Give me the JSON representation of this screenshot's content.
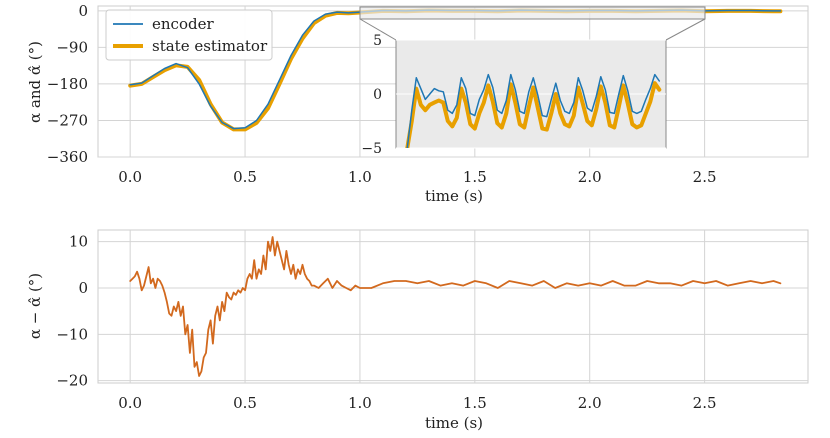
{
  "chart_data": [
    {
      "type": "line",
      "xlabel": "time (s)",
      "ylabel": "α and α̂ (°)",
      "xlim": [
        -0.14,
        2.95
      ],
      "ylim": [
        -360,
        12
      ],
      "xticks": [
        "0.0",
        "0.5",
        "1.0",
        "1.5",
        "2.0",
        "2.5"
      ],
      "xtick_values": [
        0,
        0.5,
        1.0,
        1.5,
        2.0,
        2.5
      ],
      "yticks": [
        "0",
        "−90",
        "−180",
        "−270",
        "−360"
      ],
      "ytick_values": [
        0,
        -90,
        -180,
        -270,
        -360
      ],
      "grid": true,
      "legend": {
        "location": "top-left",
        "entries": [
          "encoder",
          "state estimator"
        ]
      },
      "colors": {
        "encoder": "#1f77b4",
        "state_estimator": "#e8a000"
      },
      "series": [
        {
          "name": "encoder",
          "x": [
            0,
            0.05,
            0.1,
            0.15,
            0.2,
            0.25,
            0.3,
            0.35,
            0.4,
            0.45,
            0.5,
            0.55,
            0.6,
            0.65,
            0.7,
            0.75,
            0.8,
            0.85,
            0.9,
            0.95,
            1.0,
            1.1,
            1.2,
            1.3,
            1.4,
            1.5,
            1.6,
            1.7,
            1.8,
            1.9,
            2.0,
            2.1,
            2.2,
            2.3,
            2.4,
            2.5,
            2.6,
            2.7,
            2.8,
            2.83
          ],
          "y": [
            -182,
            -178,
            -160,
            -142,
            -130,
            -140,
            -180,
            -235,
            -275,
            -290,
            -288,
            -270,
            -230,
            -170,
            -110,
            -60,
            -25,
            -8,
            -3,
            -5,
            -3,
            1,
            0,
            2,
            1,
            1,
            0,
            2,
            1,
            0,
            1,
            1,
            0,
            1,
            2,
            0,
            1,
            1,
            0,
            0
          ]
        },
        {
          "name": "state estimator",
          "x": [
            0,
            0.05,
            0.1,
            0.15,
            0.2,
            0.25,
            0.3,
            0.35,
            0.4,
            0.45,
            0.5,
            0.55,
            0.6,
            0.65,
            0.7,
            0.75,
            0.8,
            0.85,
            0.9,
            0.95,
            1.0,
            1.1,
            1.2,
            1.3,
            1.4,
            1.5,
            1.6,
            1.7,
            1.8,
            1.9,
            2.0,
            2.1,
            2.2,
            2.3,
            2.4,
            2.5,
            2.6,
            2.7,
            2.8,
            2.83
          ],
          "y": [
            -184,
            -180,
            -163,
            -146,
            -134,
            -138,
            -170,
            -230,
            -275,
            -292,
            -292,
            -276,
            -240,
            -180,
            -118,
            -68,
            -30,
            -12,
            -5,
            -6,
            -4,
            0,
            -1,
            1,
            0,
            0,
            -1,
            1,
            0,
            -1,
            0,
            0,
            -1,
            0,
            1,
            -1,
            0,
            0,
            -1,
            -1
          ]
        }
      ],
      "inset": {
        "xlim": [
          1.15,
          2.35
        ],
        "ylim": [
          -5,
          5
        ],
        "yticks": [
          "5",
          "0",
          "−5"
        ],
        "ytick_values": [
          5,
          0,
          -5
        ],
        "series": [
          {
            "name": "encoder",
            "x": [
              1.2,
              1.22,
              1.24,
              1.26,
              1.28,
              1.3,
              1.32,
              1.34,
              1.36,
              1.38,
              1.4,
              1.42,
              1.44,
              1.46,
              1.48,
              1.5,
              1.52,
              1.54,
              1.56,
              1.58,
              1.6,
              1.62,
              1.64,
              1.66,
              1.68,
              1.7,
              1.72,
              1.74,
              1.76,
              1.78,
              1.8,
              1.82,
              1.84,
              1.86,
              1.88,
              1.9,
              1.92,
              1.94,
              1.96,
              1.98,
              2.0,
              2.02,
              2.04,
              2.06,
              2.08,
              2.1,
              2.12,
              2.14,
              2.16,
              2.18,
              2.2,
              2.22,
              2.24,
              2.26,
              2.28,
              2.3,
              2.32
            ],
            "y": [
              -5,
              -1.5,
              1.5,
              0.5,
              -0.5,
              0,
              0.5,
              0.3,
              0.2,
              -1.5,
              -1.8,
              -1,
              1.5,
              0.5,
              -1.8,
              -2,
              -0.5,
              0.4,
              1.8,
              0.6,
              -1.5,
              -1.8,
              -0.6,
              1.8,
              0.4,
              -1.6,
              -1.8,
              0.2,
              1.5,
              -0.1,
              -2,
              -2.1,
              -0.5,
              1,
              -0.6,
              -1.6,
              -1.8,
              -0.8,
              1.5,
              0.3,
              -1.3,
              -1.6,
              -0.2,
              1.6,
              0.4,
              -1.7,
              -1.8,
              0,
              1.7,
              0.3,
              -1.6,
              -1.8,
              -1.6,
              -0.5,
              0.5,
              1.8,
              1.2
            ]
          },
          {
            "name": "state estimator",
            "x": [
              1.2,
              1.22,
              1.24,
              1.26,
              1.28,
              1.3,
              1.32,
              1.34,
              1.36,
              1.38,
              1.4,
              1.42,
              1.44,
              1.46,
              1.48,
              1.5,
              1.52,
              1.54,
              1.56,
              1.58,
              1.6,
              1.62,
              1.64,
              1.66,
              1.68,
              1.7,
              1.72,
              1.74,
              1.76,
              1.78,
              1.8,
              1.82,
              1.84,
              1.86,
              1.88,
              1.9,
              1.92,
              1.94,
              1.96,
              1.98,
              2.0,
              2.02,
              2.04,
              2.06,
              2.08,
              2.1,
              2.12,
              2.14,
              2.16,
              2.18,
              2.2,
              2.22,
              2.24,
              2.26,
              2.28,
              2.3,
              2.32
            ],
            "y": [
              -5,
              -2.5,
              0.5,
              -1,
              -1.5,
              -1,
              -0.8,
              -0.6,
              -0.8,
              -2.5,
              -3,
              -2.2,
              0.5,
              -0.8,
              -2.8,
              -3.2,
              -1.8,
              -0.8,
              0.8,
              -0.7,
              -2.7,
              -3.1,
              -1.8,
              0.9,
              -0.8,
              -2.8,
              -3.1,
              -1.2,
              0.6,
              -1.3,
              -3.2,
              -3.3,
              -1.8,
              0,
              -1.8,
              -2.8,
              -3,
              -2,
              0.6,
              -0.9,
              -2.5,
              -2.9,
              -1.4,
              0.7,
              -0.8,
              -2.9,
              -3.1,
              -1.2,
              0.8,
              -0.9,
              -2.8,
              -3.1,
              -2.9,
              -1.8,
              -0.7,
              1,
              0.4
            ]
          }
        ]
      }
    },
    {
      "type": "line",
      "xlabel": "time (s)",
      "ylabel": "α − α̂ (°)",
      "xlim": [
        -0.14,
        2.95
      ],
      "ylim": [
        -20.5,
        12.5
      ],
      "xticks": [
        "0.0",
        "0.5",
        "1.0",
        "1.5",
        "2.0",
        "2.5"
      ],
      "xtick_values": [
        0,
        0.5,
        1.0,
        1.5,
        2.0,
        2.5
      ],
      "yticks": [
        "10",
        "0",
        "−10",
        "−20"
      ],
      "ytick_values": [
        10,
        0,
        -10,
        -20
      ],
      "grid": true,
      "colors": {
        "error": "#d2691e"
      },
      "series": [
        {
          "x": [
            0,
            0.01,
            0.02,
            0.03,
            0.04,
            0.05,
            0.06,
            0.07,
            0.08,
            0.09,
            0.1,
            0.11,
            0.12,
            0.13,
            0.14,
            0.15,
            0.16,
            0.17,
            0.18,
            0.19,
            0.2,
            0.21,
            0.22,
            0.23,
            0.24,
            0.25,
            0.26,
            0.27,
            0.28,
            0.29,
            0.3,
            0.31,
            0.32,
            0.33,
            0.34,
            0.35,
            0.36,
            0.37,
            0.38,
            0.39,
            0.4,
            0.41,
            0.42,
            0.43,
            0.44,
            0.45,
            0.46,
            0.47,
            0.48,
            0.49,
            0.5,
            0.51,
            0.52,
            0.53,
            0.54,
            0.55,
            0.56,
            0.57,
            0.58,
            0.59,
            0.6,
            0.61,
            0.62,
            0.63,
            0.64,
            0.65,
            0.66,
            0.67,
            0.68,
            0.69,
            0.7,
            0.71,
            0.72,
            0.73,
            0.74,
            0.75,
            0.76,
            0.77,
            0.78,
            0.79,
            0.8,
            0.82,
            0.84,
            0.86,
            0.88,
            0.9,
            0.92,
            0.94,
            0.96,
            0.98,
            1.0,
            1.05,
            1.1,
            1.15,
            1.2,
            1.25,
            1.3,
            1.35,
            1.4,
            1.45,
            1.5,
            1.55,
            1.6,
            1.65,
            1.7,
            1.75,
            1.8,
            1.85,
            1.9,
            1.95,
            2.0,
            2.05,
            2.1,
            2.15,
            2.2,
            2.25,
            2.3,
            2.35,
            2.4,
            2.45,
            2.5,
            2.55,
            2.6,
            2.65,
            2.7,
            2.75,
            2.8,
            2.83
          ],
          "y": [
            1.5,
            2,
            2.5,
            3.5,
            2,
            -0.5,
            0.5,
            2.5,
            4.5,
            1,
            2,
            0,
            2,
            1.5,
            0.5,
            -1,
            -3,
            -5.5,
            -6,
            -4,
            -5,
            -3,
            -6,
            -4,
            -10,
            -8,
            -14,
            -9,
            -17,
            -16,
            -19,
            -18,
            -15,
            -14,
            -9,
            -7,
            -12,
            -6,
            -4,
            -7,
            -3,
            -5,
            -1,
            -2,
            -2.5,
            -1,
            -1.5,
            -0.5,
            -1,
            0,
            -0.5,
            2,
            3,
            2,
            6,
            2,
            4,
            3,
            7,
            4,
            10,
            8,
            11,
            7,
            10,
            8,
            6,
            4,
            8,
            5,
            3,
            5,
            2,
            4,
            3,
            5,
            3,
            2,
            1.5,
            0.5,
            0.5,
            0,
            1,
            2,
            0,
            1.5,
            0.5,
            0,
            -0.5,
            0.5,
            0,
            0,
            1,
            1.5,
            1.5,
            1,
            1.5,
            0.5,
            1,
            0.5,
            1.5,
            1,
            0,
            1.5,
            1,
            0.5,
            1.5,
            0,
            1,
            0.5,
            1,
            0.5,
            1.5,
            0.5,
            0.5,
            1.5,
            1,
            1,
            0.5,
            1.5,
            1,
            1.5,
            0.5,
            1,
            1.5,
            1,
            1.5,
            1
          ]
        }
      ]
    }
  ]
}
